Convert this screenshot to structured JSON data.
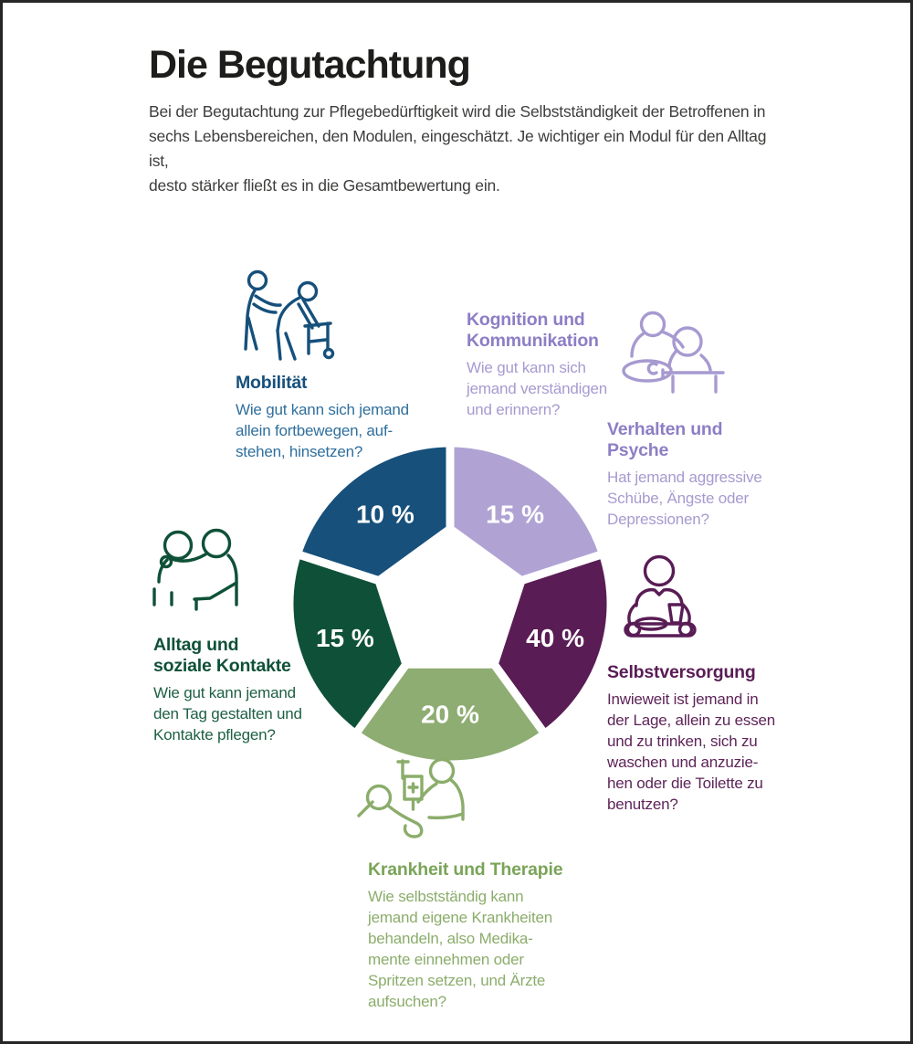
{
  "page": {
    "title": "Die Begutachtung",
    "intro": "Bei der Begutachtung zur Pflegebedürftigkeit wird die Selbstständigkeit der Betroffenen in\nsechs Lebensbereichen, den Modulen, eingeschätzt. Je wichtiger ein Modul für den Alltag ist,\ndesto stärker fließt es in die Gesamtbewertung ein."
  },
  "modules": {
    "mobilitaet": {
      "heading": "Mobilität",
      "description": "Wie gut kann sich jemand\nallein fortbewegen, auf-\nstehen, hinsetzen?",
      "weight_label": "10 %",
      "color": "#16507b",
      "text_color": "#2f6f9d",
      "icon": "caregiver-helping-person-with-walker-icon"
    },
    "kognition": {
      "heading": "Kognition und\nKommunikation",
      "description": "Wie gut kann sich\njemand verständigen\nund erinnern?",
      "weight_label": "15 %",
      "color": "#8d7ec5",
      "fill_color": "#b0a3d4",
      "text_color": "#a79ad0",
      "icon": "two-people-talking-at-table-icon"
    },
    "verhalten": {
      "heading": "Verhalten und\nPsyche",
      "description": "Hat jemand aggressive\nSchübe, Ängste oder\nDepressionen?",
      "weight_label": "15 %",
      "color": "#8d7ec5",
      "text_color": "#a79ad0",
      "icon": ""
    },
    "selbstversorgung": {
      "heading": "Selbstversorgung",
      "description": "Inwieweit ist jemand in\nder Lage, allein zu essen\nund zu trinken, sich zu\nwaschen und anzuzie-\nhen oder die Toilette zu\nbenutzen?",
      "weight_label": "40 %",
      "color": "#591c55",
      "text_color": "#5e2459",
      "icon": "person-eating-at-table-icon"
    },
    "alltag": {
      "heading": "Alltag und\nsoziale Kontakte",
      "description": "Wie gut kann jemand\nden Tag gestalten und\nKontakte pflegen?",
      "weight_label": "15 %",
      "color": "#0f5138",
      "text_color": "#1e6044",
      "icon": "two-people-embracing-icon"
    },
    "krankheit": {
      "heading": "Krankheit und Therapie",
      "description": "Wie selbstständig kann\njemand eigene Krankheiten\nbehandeln, also Medika-\nmente einnehmen oder\nSpritzen setzen, und Ärzte\naufsuchen?",
      "weight_label": "20 %",
      "color": "#7aa458",
      "fill_color": "#8ead72",
      "text_color": "#8bad6b",
      "icon": "patient-with-iv-and-caregiver-icon"
    }
  },
  "chart_data": {
    "type": "donut",
    "title": "",
    "unit": "%",
    "layout": "pentagon-donut, 5 equal 72-degree petals, labels show weighting percent, gap at 12 o'clock",
    "legend_position": "around-chart",
    "segments": [
      {
        "module": "Kognition und Kommunikation / Verhalten und Psyche",
        "value": 15,
        "label": "15 %",
        "color": "#b0a3d4"
      },
      {
        "module": "Selbstversorgung",
        "value": 40,
        "label": "40 %",
        "color": "#591c55"
      },
      {
        "module": "Krankheit und Therapie",
        "value": 20,
        "label": "20 %",
        "color": "#8ead72"
      },
      {
        "module": "Alltag und soziale Kontakte",
        "value": 15,
        "label": "15 %",
        "color": "#0f5138"
      },
      {
        "module": "Mobilität",
        "value": 10,
        "label": "10 %",
        "color": "#16507b"
      }
    ],
    "label_text_color": "#ffffff"
  }
}
